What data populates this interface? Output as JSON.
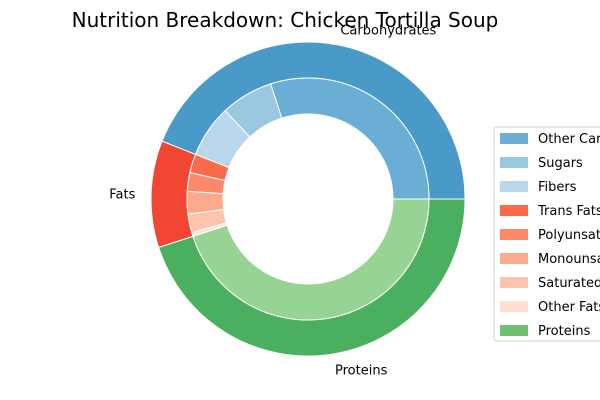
{
  "chart_data": {
    "type": "pie",
    "title": "Nutrition Breakdown:  Chicken Tortilla Soup",
    "outer_ring": [
      {
        "label": "Carbohydrates",
        "value": 44.0,
        "color": "#4a9ac9"
      },
      {
        "label": "Fats",
        "value": 11.0,
        "color": "#f04632"
      },
      {
        "label": "Proteins",
        "value": 45.0,
        "color": "#4aaf5f"
      }
    ],
    "inner_ring": [
      {
        "label": "Other Carbohydrates",
        "value": 30.0,
        "color": "#6aaed6"
      },
      {
        "label": "Sugars",
        "value": 7.0,
        "color": "#9ac8e1"
      },
      {
        "label": "Fibers",
        "value": 7.0,
        "color": "#bad6eb"
      },
      {
        "label": "Trans Fats",
        "value": 2.5,
        "color": "#fb6a4a"
      },
      {
        "label": "Polyunsaturated Fats",
        "value": 2.5,
        "color": "#fc8a6a"
      },
      {
        "label": "Monounsaturated Fats",
        "value": 3.0,
        "color": "#fcaa8e"
      },
      {
        "label": "Saturated Fats",
        "value": 2.5,
        "color": "#fcc4ac"
      },
      {
        "label": "Other Fats",
        "value": 0.5,
        "color": "#fee0d2"
      },
      {
        "label": "Proteins",
        "value": 45.0,
        "color": "#97d494"
      }
    ],
    "legend": [
      {
        "label": "Other Carbohydrates",
        "color": "#6aaed6"
      },
      {
        "label": "Sugars",
        "color": "#9ac8e1"
      },
      {
        "label": "Fibers",
        "color": "#bad6eb"
      },
      {
        "label": "Trans Fats",
        "color": "#fb6a4a"
      },
      {
        "label": "Polyunsaturated Fats",
        "color": "#fc8a6a"
      },
      {
        "label": "Monounsaturated Fats",
        "color": "#fcaa8e"
      },
      {
        "label": "Saturated Fats",
        "color": "#fcc4ac"
      },
      {
        "label": "Other Fats",
        "color": "#fee0d2"
      },
      {
        "label": "Proteins",
        "color": "#6ebf70"
      }
    ],
    "legend_placement": "right"
  }
}
